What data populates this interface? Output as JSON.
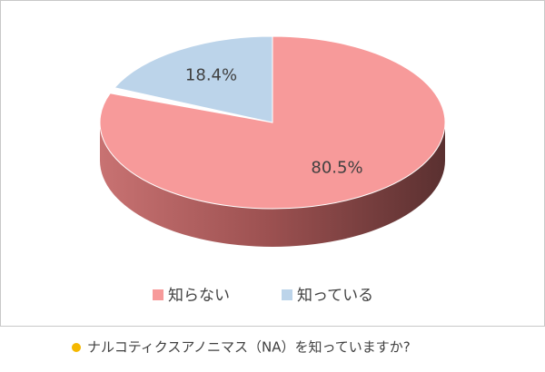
{
  "chart_data": {
    "type": "pie",
    "title": "ナルコティクスアノニマス（NA）を知っていますか?",
    "categories": [
      "知らない",
      "知っている"
    ],
    "values": [
      80.5,
      18.4
    ],
    "value_labels": [
      "80.5%",
      "18.4%"
    ],
    "colors": [
      "#f79a9a",
      "#bcd4ea"
    ],
    "legend": "bottom"
  }
}
